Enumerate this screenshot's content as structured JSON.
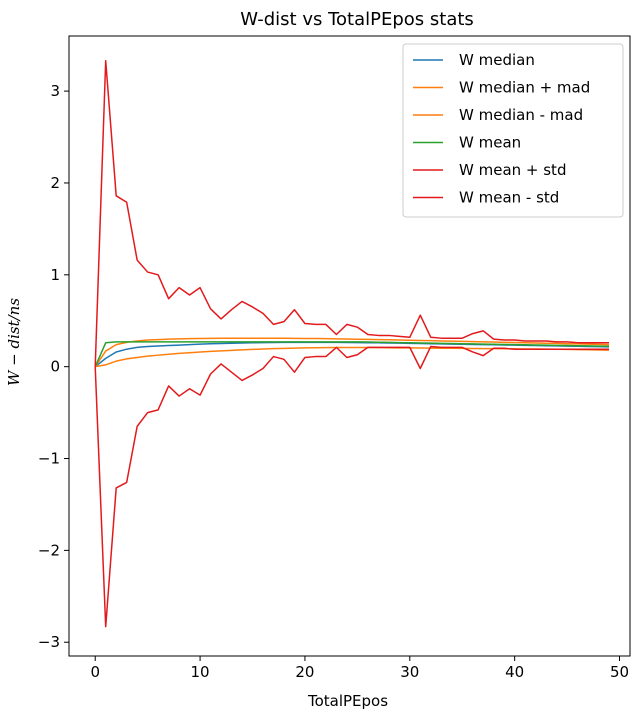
{
  "chart_data": {
    "type": "line",
    "title": "W-dist vs TotalPEpos stats",
    "xlabel": "TotalPEpos",
    "ylabel": "W − dist/ns",
    "xlim": [
      -2.5,
      51
    ],
    "ylim": [
      -3.15,
      3.6
    ],
    "xticks": [
      0,
      10,
      20,
      30,
      40,
      50
    ],
    "yticks": [
      -3,
      -2,
      -1,
      0,
      1,
      2,
      3
    ],
    "ytick_labels": [
      "−3",
      "−2",
      "−1",
      "0",
      "1",
      "2",
      "3"
    ],
    "grid": false,
    "legend_position": "top-right",
    "x": [
      0,
      1,
      2,
      3,
      4,
      5,
      6,
      7,
      8,
      9,
      10,
      11,
      12,
      13,
      14,
      15,
      16,
      17,
      18,
      19,
      20,
      21,
      22,
      23,
      24,
      25,
      26,
      27,
      28,
      29,
      30,
      31,
      32,
      33,
      34,
      35,
      36,
      37,
      38,
      39,
      40,
      41,
      42,
      43,
      44,
      45,
      46,
      47,
      48,
      49
    ],
    "series": [
      {
        "name": "W median",
        "color": "#1f77b4",
        "values": [
          0.0,
          0.09,
          0.16,
          0.19,
          0.21,
          0.22,
          0.225,
          0.23,
          0.235,
          0.24,
          0.245,
          0.25,
          0.252,
          0.255,
          0.258,
          0.26,
          0.262,
          0.263,
          0.264,
          0.265,
          0.265,
          0.265,
          0.265,
          0.264,
          0.263,
          0.262,
          0.261,
          0.26,
          0.258,
          0.256,
          0.254,
          0.252,
          0.25,
          0.248,
          0.246,
          0.244,
          0.242,
          0.24,
          0.238,
          0.236,
          0.234,
          0.232,
          0.23,
          0.228,
          0.226,
          0.224,
          0.222,
          0.22,
          0.218,
          0.216
        ]
      },
      {
        "name": "W median + mad",
        "color": "#ff7f0e",
        "values": [
          0.0,
          0.17,
          0.24,
          0.265,
          0.28,
          0.29,
          0.295,
          0.3,
          0.303,
          0.305,
          0.307,
          0.308,
          0.309,
          0.31,
          0.31,
          0.31,
          0.31,
          0.31,
          0.309,
          0.308,
          0.307,
          0.306,
          0.305,
          0.303,
          0.301,
          0.299,
          0.297,
          0.295,
          0.293,
          0.29,
          0.288,
          0.285,
          0.283,
          0.28,
          0.278,
          0.275,
          0.273,
          0.27,
          0.268,
          0.265,
          0.263,
          0.26,
          0.258,
          0.255,
          0.253,
          0.25,
          0.248,
          0.245,
          0.243,
          0.24
        ]
      },
      {
        "name": "W median - mad",
        "color": "#ff7f0e",
        "values": [
          0.0,
          0.02,
          0.06,
          0.085,
          0.1,
          0.115,
          0.125,
          0.135,
          0.145,
          0.152,
          0.16,
          0.166,
          0.172,
          0.178,
          0.183,
          0.188,
          0.192,
          0.196,
          0.199,
          0.202,
          0.204,
          0.206,
          0.207,
          0.208,
          0.208,
          0.208,
          0.208,
          0.207,
          0.206,
          0.205,
          0.204,
          0.203,
          0.202,
          0.201,
          0.2,
          0.199,
          0.198,
          0.197,
          0.196,
          0.195,
          0.194,
          0.193,
          0.192,
          0.191,
          0.19,
          0.188,
          0.186,
          0.184,
          0.182,
          0.18
        ]
      },
      {
        "name": "W mean",
        "color": "#2ca02c",
        "values": [
          0.0,
          0.26,
          0.27,
          0.27,
          0.27,
          0.27,
          0.27,
          0.27,
          0.27,
          0.27,
          0.27,
          0.27,
          0.27,
          0.27,
          0.27,
          0.27,
          0.27,
          0.27,
          0.27,
          0.27,
          0.27,
          0.27,
          0.27,
          0.27,
          0.27,
          0.27,
          0.268,
          0.266,
          0.264,
          0.262,
          0.26,
          0.258,
          0.256,
          0.254,
          0.252,
          0.25,
          0.248,
          0.246,
          0.244,
          0.242,
          0.24,
          0.238,
          0.236,
          0.234,
          0.232,
          0.23,
          0.228,
          0.226,
          0.224,
          0.222
        ]
      },
      {
        "name": "W mean + std",
        "color": "#e31a1c",
        "values": [
          0.0,
          3.33,
          1.86,
          1.79,
          1.16,
          1.03,
          1.0,
          0.74,
          0.86,
          0.78,
          0.86,
          0.63,
          0.52,
          0.62,
          0.71,
          0.65,
          0.58,
          0.46,
          0.49,
          0.62,
          0.47,
          0.46,
          0.46,
          0.35,
          0.46,
          0.43,
          0.35,
          0.34,
          0.34,
          0.33,
          0.32,
          0.56,
          0.32,
          0.31,
          0.31,
          0.31,
          0.36,
          0.39,
          0.3,
          0.29,
          0.29,
          0.28,
          0.28,
          0.28,
          0.27,
          0.27,
          0.26,
          0.26,
          0.26,
          0.26
        ]
      },
      {
        "name": "W mean - std",
        "color": "#e31a1c",
        "values": [
          0.0,
          -2.83,
          -1.32,
          -1.26,
          -0.65,
          -0.5,
          -0.47,
          -0.21,
          -0.32,
          -0.24,
          -0.31,
          -0.08,
          0.03,
          -0.06,
          -0.15,
          -0.09,
          -0.02,
          0.11,
          0.08,
          -0.06,
          0.1,
          0.11,
          0.11,
          0.21,
          0.1,
          0.13,
          0.21,
          0.21,
          0.21,
          0.21,
          0.21,
          -0.02,
          0.22,
          0.21,
          0.21,
          0.21,
          0.16,
          0.12,
          0.2,
          0.2,
          0.19,
          0.19,
          0.19,
          0.19,
          0.19,
          0.19,
          0.19,
          0.19,
          0.19,
          0.19
        ]
      }
    ]
  }
}
